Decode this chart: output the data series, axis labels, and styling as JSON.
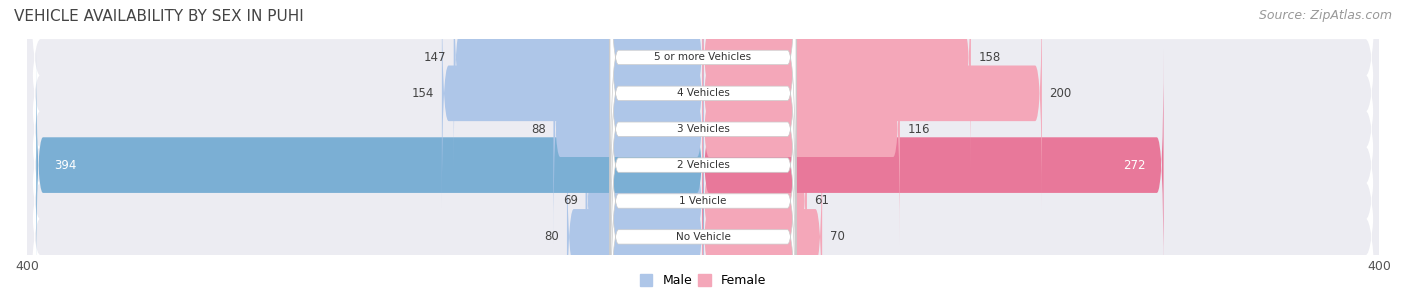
{
  "title": "VEHICLE AVAILABILITY BY SEX IN PUHI",
  "source": "Source: ZipAtlas.com",
  "categories": [
    "No Vehicle",
    "1 Vehicle",
    "2 Vehicles",
    "3 Vehicles",
    "4 Vehicles",
    "5 or more Vehicles"
  ],
  "male_values": [
    80,
    69,
    394,
    88,
    154,
    147
  ],
  "female_values": [
    70,
    61,
    272,
    116,
    200,
    158
  ],
  "male_color": "#aec6e8",
  "female_color": "#f4a7b9",
  "male_color_large": "#7bafd4",
  "female_color_large": "#e8789a",
  "bar_bg_color": "#f0f0f5",
  "axis_max": 400,
  "male_label": "Male",
  "female_label": "Female",
  "title_fontsize": 11,
  "source_fontsize": 9,
  "label_fontsize": 8.5,
  "bar_height": 0.55,
  "row_bg_color": "#ececf2"
}
